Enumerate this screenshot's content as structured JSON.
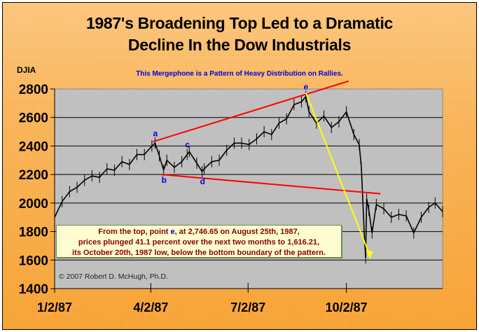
{
  "chart_data": {
    "type": "line",
    "title": "1987's Broadening Top Led to a Dramatic Decline In the Dow Industrials",
    "title_lines": [
      "1987's Broadening Top Led to a Dramatic",
      "Decline In the Dow Industrials"
    ],
    "subtitle": "This Mergephone  is a Pattern of Heavy Distribution on Rallies.",
    "ylabel": "DJIA",
    "xlabel": "",
    "ylim": [
      1400,
      2800
    ],
    "yticks": [
      "2800",
      "2600",
      "2400",
      "2200",
      "2000",
      "1800",
      "1600",
      "1400"
    ],
    "xlim": [
      "1987-01-02",
      "1987-12-31"
    ],
    "xticks": [
      {
        "date": "1987-01-02",
        "label": "1/2/87"
      },
      {
        "date": "1987-04-02",
        "label": "4/2/87"
      },
      {
        "date": "1987-07-02",
        "label": "7/2/87"
      },
      {
        "date": "1987-10-02",
        "label": "10/2/87"
      }
    ],
    "grid": true,
    "series": [
      {
        "x": [
          "1987-01-02",
          "1987-01-09",
          "1987-01-16",
          "1987-01-23",
          "1987-01-30",
          "1987-02-06",
          "1987-02-13",
          "1987-02-20",
          "1987-02-27",
          "1987-03-06",
          "1987-03-13",
          "1987-03-20",
          "1987-03-27",
          "1987-04-03",
          "1987-04-06",
          "1987-04-10",
          "1987-04-14",
          "1987-04-17",
          "1987-04-24",
          "1987-05-01",
          "1987-05-06",
          "1987-05-08",
          "1987-05-15",
          "1987-05-20",
          "1987-05-22",
          "1987-05-29",
          "1987-06-05",
          "1987-06-12",
          "1987-06-19",
          "1987-06-26",
          "1987-07-03",
          "1987-07-10",
          "1987-07-17",
          "1987-07-24",
          "1987-07-31",
          "1987-08-07",
          "1987-08-14",
          "1987-08-21",
          "1987-08-25",
          "1987-08-28",
          "1987-09-04",
          "1987-09-11",
          "1987-09-18",
          "1987-09-25",
          "1987-10-02",
          "1987-10-09",
          "1987-10-14",
          "1987-10-16",
          "1987-10-19",
          "1987-10-20",
          "1987-10-21",
          "1987-10-23",
          "1987-10-26",
          "1987-10-30",
          "1987-11-06",
          "1987-11-13",
          "1987-11-20",
          "1987-11-27",
          "1987-12-04",
          "1987-12-11",
          "1987-12-18",
          "1987-12-24",
          "1987-12-31"
        ],
        "y": [
          1900,
          2010,
          2080,
          2110,
          2160,
          2190,
          2180,
          2240,
          2230,
          2290,
          2270,
          2340,
          2340,
          2400,
          2420,
          2330,
          2230,
          2300,
          2250,
          2290,
          2340,
          2360,
          2280,
          2220,
          2240,
          2290,
          2300,
          2370,
          2420,
          2420,
          2410,
          2450,
          2500,
          2480,
          2560,
          2590,
          2690,
          2710,
          2746.65,
          2640,
          2560,
          2610,
          2530,
          2570,
          2640,
          2480,
          2410,
          2250,
          1740,
          1616.21,
          2030,
          1950,
          1790,
          1990,
          1960,
          1900,
          1920,
          1910,
          1790,
          1900,
          1970,
          2000,
          1940
        ]
      }
    ],
    "points": [
      {
        "label": "a",
        "date": "1987-04-06",
        "value": 2420
      },
      {
        "label": "b",
        "date": "1987-04-14",
        "value": 2230
      },
      {
        "label": "c",
        "date": "1987-05-06",
        "value": 2340
      },
      {
        "label": "d",
        "date": "1987-05-20",
        "value": 2220
      },
      {
        "label": "e",
        "date": "1987-08-25",
        "value": 2746.65
      }
    ],
    "trendlines": [
      {
        "name": "upper-boundary",
        "color": "#ff0000",
        "from": {
          "date": "1987-04-04",
          "value": 2430
        },
        "to": {
          "date": "1987-10-04",
          "value": 2855
        }
      },
      {
        "name": "lower-boundary",
        "color": "#ff0000",
        "from": {
          "date": "1987-04-12",
          "value": 2200
        },
        "to": {
          "date": "1987-11-03",
          "value": 2065
        }
      },
      {
        "name": "decline-arrow",
        "color": "#ffff00",
        "from": {
          "date": "1987-08-25",
          "value": 2775
        },
        "to": {
          "date": "1987-10-24",
          "value": 1630
        }
      }
    ],
    "annotation": {
      "line1_pre": "From the top, point ",
      "line1_e": "e",
      "line1_post": ", at 2,746.65 on August 25th, 1987,",
      "line2": "prices plunged 41.1 percent over the next two months to 1,616.21,",
      "line3": "its October 20th, 1987 low, below the bottom boundary of the pattern."
    },
    "copyright": "© 2007 Robert D. McHugh, Ph.D.",
    "colors": {
      "background": "#f9a53a",
      "plot": "#c0c0c0",
      "price": "#000000",
      "boundary": "#ff0000",
      "arrow": "#ffff00",
      "point_labels": "#0000e0",
      "note_text": "#8b0000"
    }
  }
}
